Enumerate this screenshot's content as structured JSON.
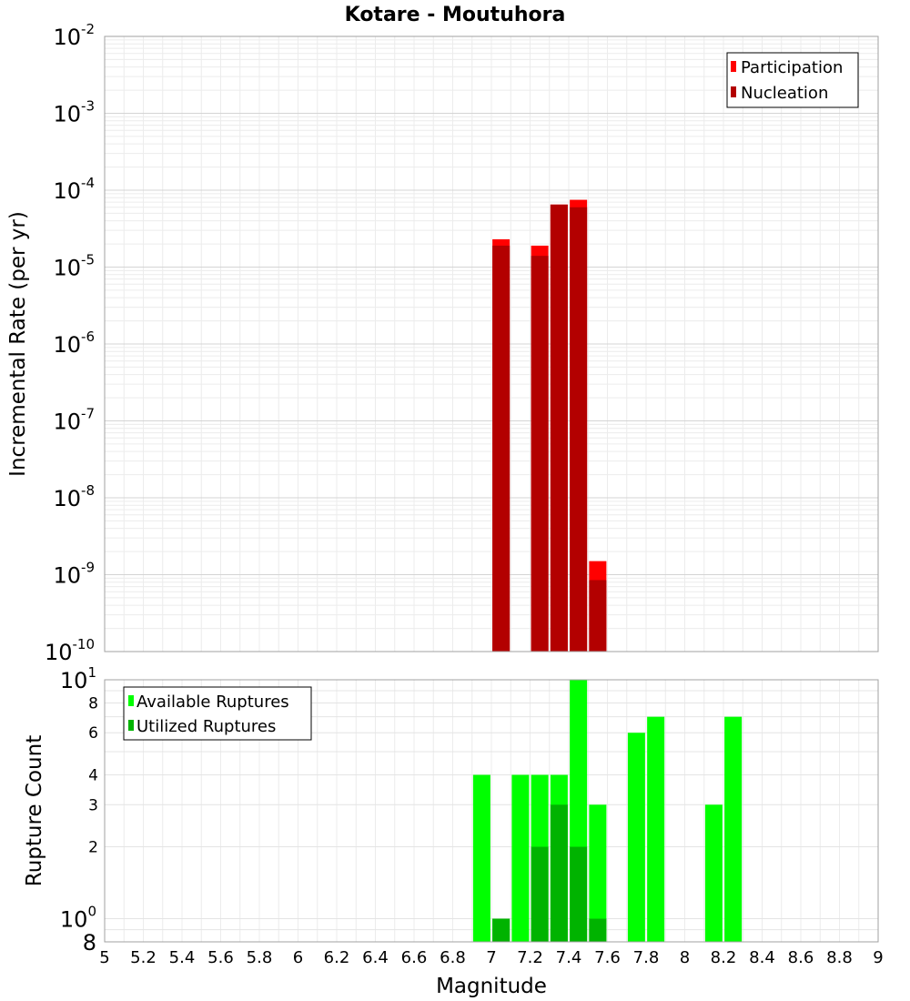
{
  "chart_data": [
    {
      "type": "bar",
      "title": "Kotare - Moutuhora",
      "xlabel": "",
      "ylabel": "Incremental Rate (per yr)",
      "yscale": "log",
      "ylim": [
        1e-10,
        0.01
      ],
      "xlim": [
        5,
        9
      ],
      "y_ticks": [
        {
          "base": "10",
          "exp": "-10"
        },
        {
          "base": "10",
          "exp": "-9"
        },
        {
          "base": "10",
          "exp": "-8"
        },
        {
          "base": "10",
          "exp": "-7"
        },
        {
          "base": "10",
          "exp": "-6"
        },
        {
          "base": "10",
          "exp": "-5"
        },
        {
          "base": "10",
          "exp": "-4"
        },
        {
          "base": "10",
          "exp": "-3"
        },
        {
          "base": "10",
          "exp": "-2"
        }
      ],
      "legend": {
        "position": "top-right",
        "entries": [
          "Participation",
          "Nucleation"
        ]
      },
      "series": [
        {
          "name": "Participation",
          "color": "#ff0000",
          "x": [
            7.05,
            7.25,
            7.35,
            7.45,
            7.55
          ],
          "values": [
            2.3e-05,
            1.9e-05,
            6.5e-05,
            7.5e-05,
            1.5e-09
          ]
        },
        {
          "name": "Nucleation",
          "color": "#b30000",
          "x": [
            7.05,
            7.25,
            7.35,
            7.45,
            7.55
          ],
          "values": [
            1.9e-05,
            1.4e-05,
            6.5e-05,
            6e-05,
            8.5e-10
          ]
        }
      ]
    },
    {
      "type": "bar",
      "title": "",
      "xlabel": "Magnitude",
      "ylabel": "Rupture Count",
      "yscale": "log",
      "ylim": [
        0.8,
        10
      ],
      "xlim": [
        5,
        9
      ],
      "x_ticks": [
        "5",
        "5.2",
        "5.4",
        "5.6",
        "5.8",
        "6",
        "6.2",
        "6.4",
        "6.6",
        "6.8",
        "7",
        "7.2",
        "7.4",
        "7.6",
        "7.8",
        "8",
        "8.2",
        "8.4",
        "8.6",
        "8.8",
        "9"
      ],
      "y_ticks_small": [
        {
          "label": "2",
          "value": 2
        },
        {
          "label": "3",
          "value": 3
        },
        {
          "label": "4",
          "value": 4
        },
        {
          "label": "6",
          "value": 6
        },
        {
          "label": "8",
          "value": 8
        }
      ],
      "y_ticks_power": [
        {
          "base": "10",
          "exp": "0",
          "value": 1
        },
        {
          "base": "10",
          "exp": "1",
          "value": 10
        }
      ],
      "y_bottom_label": "8",
      "legend": {
        "position": "top-left",
        "entries": [
          "Available Ruptures",
          "Utilized Ruptures"
        ]
      },
      "series": [
        {
          "name": "Available Ruptures",
          "color": "#00ff00",
          "x": [
            6.95,
            7.05,
            7.15,
            7.25,
            7.35,
            7.45,
            7.55,
            7.75,
            7.85,
            8.15,
            8.25
          ],
          "values": [
            4,
            1,
            4,
            4,
            4,
            10,
            3,
            6,
            7,
            3,
            7
          ]
        },
        {
          "name": "Utilized Ruptures",
          "color": "#00b300",
          "x": [
            7.05,
            7.25,
            7.35,
            7.45,
            7.55
          ],
          "values": [
            1,
            2,
            3,
            2,
            1
          ]
        }
      ]
    }
  ]
}
